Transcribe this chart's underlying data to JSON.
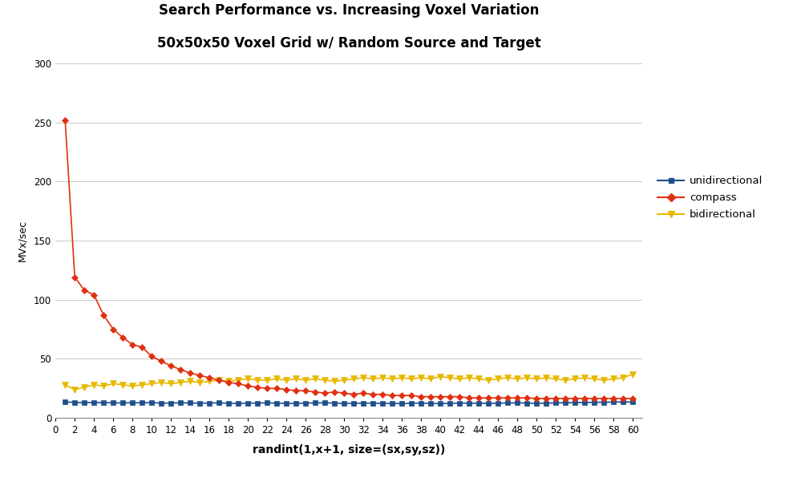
{
  "title1": "Search Performance vs. Increasing Voxel Variation",
  "title2": "50x50x50 Voxel Grid w/ Random Source and Target",
  "xlabel": "randint(1,x+1, size=(sx,sy,sz))",
  "ylabel": "MVx/sec",
  "xlim": [
    0,
    61
  ],
  "ylim": [
    0,
    300
  ],
  "yticks": [
    0,
    50,
    100,
    150,
    200,
    250,
    300
  ],
  "xticks": [
    0,
    2,
    4,
    6,
    8,
    10,
    12,
    14,
    16,
    18,
    20,
    22,
    24,
    26,
    28,
    30,
    32,
    34,
    36,
    38,
    40,
    42,
    44,
    46,
    48,
    50,
    52,
    54,
    56,
    58,
    60
  ],
  "x": [
    1,
    2,
    3,
    4,
    5,
    6,
    7,
    8,
    9,
    10,
    11,
    12,
    13,
    14,
    15,
    16,
    17,
    18,
    19,
    20,
    21,
    22,
    23,
    24,
    25,
    26,
    27,
    28,
    29,
    30,
    31,
    32,
    33,
    34,
    35,
    36,
    37,
    38,
    39,
    40,
    41,
    42,
    43,
    44,
    45,
    46,
    47,
    48,
    49,
    50,
    51,
    52,
    53,
    54,
    55,
    56,
    57,
    58,
    59,
    60
  ],
  "unidirectional": [
    13.5,
    13.2,
    13.0,
    13.1,
    13.0,
    12.8,
    12.7,
    12.9,
    12.8,
    13.0,
    12.5,
    12.6,
    12.8,
    12.7,
    12.5,
    12.6,
    12.8,
    12.4,
    12.3,
    12.5,
    12.6,
    12.8,
    12.5,
    12.4,
    12.3,
    12.6,
    12.7,
    12.9,
    12.5,
    12.3,
    12.4,
    12.6,
    12.5,
    12.3,
    12.4,
    12.2,
    12.5,
    12.6,
    12.3,
    12.1,
    12.4,
    12.6,
    12.5,
    12.4,
    12.3,
    12.5,
    12.7,
    12.8,
    12.6,
    12.4,
    12.5,
    12.7,
    12.9,
    13.0,
    13.1,
    13.2,
    13.3,
    13.4,
    13.5,
    13.5
  ],
  "compass": [
    252,
    119,
    108,
    104,
    87,
    75,
    68,
    62,
    60,
    52,
    48,
    44,
    41,
    38,
    36,
    34,
    32,
    30,
    29,
    27,
    26,
    25,
    25,
    24,
    23,
    23,
    22,
    21,
    22,
    21,
    20,
    21,
    20,
    20,
    19,
    19,
    19,
    18,
    18,
    18,
    18,
    18,
    17,
    17,
    17,
    17,
    17,
    17,
    17,
    16.5,
    16.5,
    16.5,
    16.5,
    16.5,
    16.5,
    16.5,
    16.5,
    16.5,
    16.5,
    16.5
  ],
  "bidirectional": [
    28,
    24,
    26,
    28,
    27,
    29,
    28,
    27,
    28,
    29,
    30,
    29,
    30,
    31,
    30,
    31,
    32,
    31,
    32,
    33,
    32,
    32,
    33,
    32,
    33,
    32,
    33,
    32,
    31,
    32,
    33,
    34,
    33,
    34,
    33,
    34,
    33,
    34,
    33,
    35,
    34,
    33,
    34,
    33,
    32,
    33,
    34,
    33,
    34,
    33,
    34,
    33,
    32,
    33,
    34,
    33,
    32,
    33,
    34,
    37
  ],
  "color_uni": "#1F4E8C",
  "color_compass": "#E03010",
  "color_bi": "#E8B800",
  "background_color": "#FFFFFF",
  "grid_color": "#CCCCCC",
  "title_color": "#000000"
}
